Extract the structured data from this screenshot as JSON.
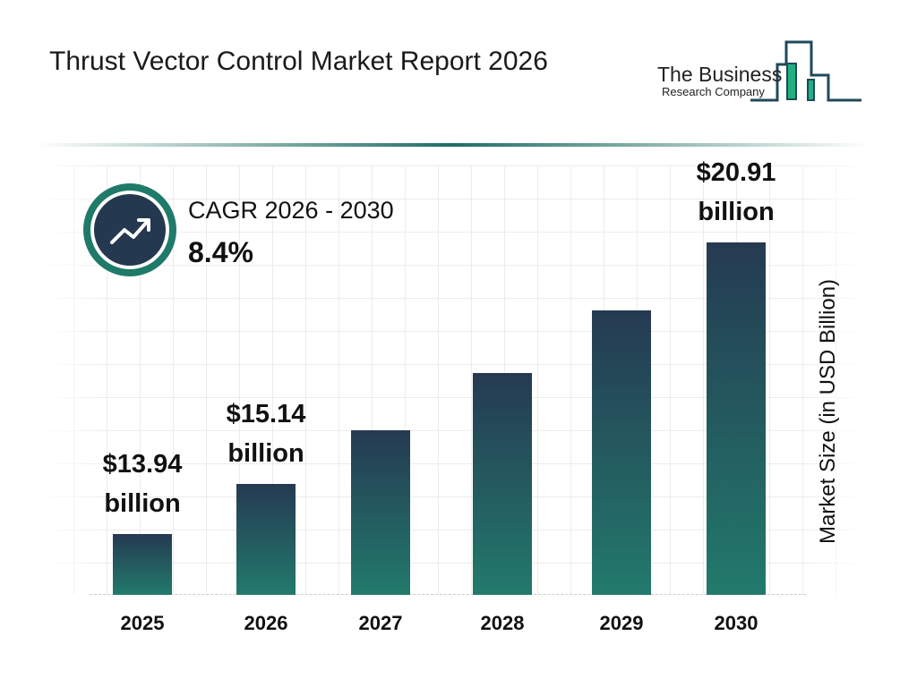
{
  "title": "Thrust Vector Control Market Report 2026",
  "logo": {
    "line1": "The Business",
    "line2": "Research Company"
  },
  "cagr": {
    "label": "CAGR 2026 - 2030",
    "value": "8.4%",
    "icon": "trending-up-icon"
  },
  "colors": {
    "bar_top": "#253a52",
    "bar_bottom": "#227a6c",
    "accent": "#1f7a6a"
  },
  "chart_data": {
    "type": "bar",
    "categories": [
      "2025",
      "2026",
      "2027",
      "2028",
      "2029",
      "2030"
    ],
    "values": [
      13.94,
      15.14,
      16.41,
      17.79,
      19.29,
      20.91
    ],
    "data_labels": [
      {
        "index": 0,
        "value": "$13.94",
        "unit": "billion"
      },
      {
        "index": 1,
        "value": "$15.14",
        "unit": "billion"
      },
      {
        "index": 5,
        "value": "$20.91",
        "unit": "billion"
      }
    ],
    "ylabel": "Market Size (in USD Billion)",
    "xlabel": "",
    "grid": true
  }
}
